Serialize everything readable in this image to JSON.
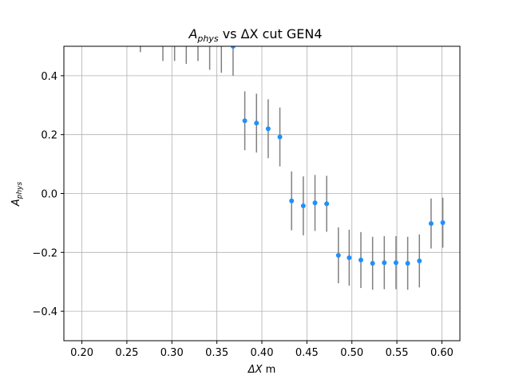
{
  "chart_data": {
    "type": "scatter",
    "title": {
      "main": "A",
      "sub": "phys",
      "rest": " vs ΔX cut GEN4",
      "full": "A_phys vs ΔX cut GEN4"
    },
    "xlabel": {
      "main": "ΔX",
      "rest": " m",
      "full": "ΔX m"
    },
    "ylabel": {
      "main": "A",
      "sub": "phys",
      "full": "A_phys"
    },
    "xlim": [
      0.18,
      0.62
    ],
    "ylim": [
      -0.5,
      0.5
    ],
    "x_ticks": [
      0.2,
      0.25,
      0.3,
      0.35,
      0.4,
      0.45,
      0.5,
      0.55,
      0.6
    ],
    "x_tick_labels": [
      "0.20",
      "0.25",
      "0.30",
      "0.35",
      "0.40",
      "0.45",
      "0.50",
      "0.55",
      "0.60"
    ],
    "y_ticks": [
      -0.4,
      -0.2,
      0.0,
      0.2,
      0.4
    ],
    "y_tick_labels": [
      "−0.4",
      "−0.2",
      "0.0",
      "0.2",
      "0.4"
    ],
    "grid": true,
    "marker_color": "#1e90ff",
    "errorbar_color": "#808080",
    "series": [
      {
        "points": [
          {
            "x": 0.265,
            "y": 0.58,
            "err": 0.1
          },
          {
            "x": 0.29,
            "y": 0.55,
            "err": 0.1
          },
          {
            "x": 0.303,
            "y": 0.55,
            "err": 0.1
          },
          {
            "x": 0.316,
            "y": 0.54,
            "err": 0.1
          },
          {
            "x": 0.329,
            "y": 0.55,
            "err": 0.1
          },
          {
            "x": 0.342,
            "y": 0.52,
            "err": 0.1
          },
          {
            "x": 0.355,
            "y": 0.51,
            "err": 0.1
          },
          {
            "x": 0.368,
            "y": 0.5,
            "err": 0.1
          },
          {
            "x": 0.381,
            "y": 0.247,
            "err": 0.1
          },
          {
            "x": 0.394,
            "y": 0.239,
            "err": 0.1
          },
          {
            "x": 0.407,
            "y": 0.22,
            "err": 0.1
          },
          {
            "x": 0.42,
            "y": 0.192,
            "err": 0.1
          },
          {
            "x": 0.433,
            "y": -0.025,
            "err": 0.1
          },
          {
            "x": 0.446,
            "y": -0.042,
            "err": 0.1
          },
          {
            "x": 0.459,
            "y": -0.032,
            "err": 0.095
          },
          {
            "x": 0.472,
            "y": -0.035,
            "err": 0.095
          },
          {
            "x": 0.485,
            "y": -0.21,
            "err": 0.095
          },
          {
            "x": 0.497,
            "y": -0.218,
            "err": 0.095
          },
          {
            "x": 0.51,
            "y": -0.226,
            "err": 0.095
          },
          {
            "x": 0.523,
            "y": -0.237,
            "err": 0.09
          },
          {
            "x": 0.536,
            "y": -0.235,
            "err": 0.09
          },
          {
            "x": 0.549,
            "y": -0.235,
            "err": 0.09
          },
          {
            "x": 0.562,
            "y": -0.237,
            "err": 0.09
          },
          {
            "x": 0.575,
            "y": -0.229,
            "err": 0.09
          },
          {
            "x": 0.588,
            "y": -0.102,
            "err": 0.085
          },
          {
            "x": 0.601,
            "y": -0.099,
            "err": 0.085
          }
        ]
      }
    ]
  }
}
